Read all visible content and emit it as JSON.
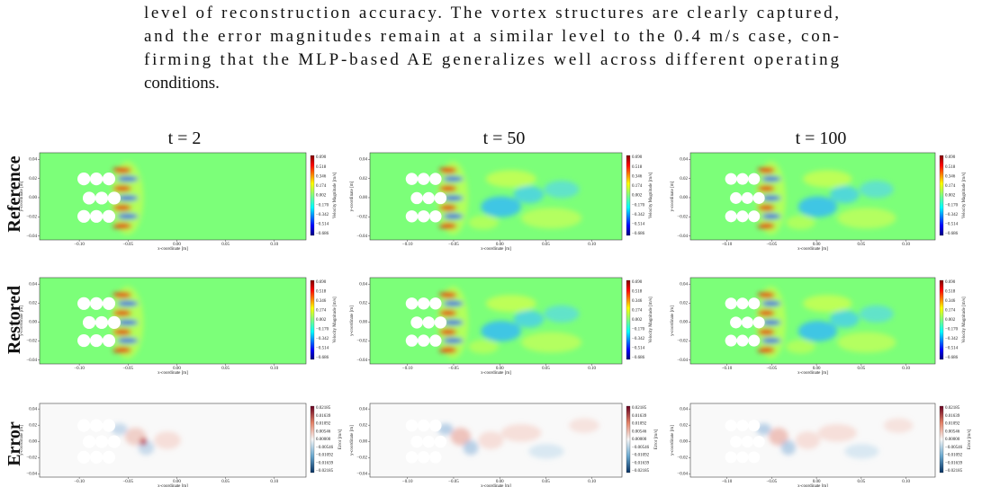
{
  "paragraph": [
    "level of reconstruction accuracy. The vortex structures are clearly captured,",
    "and the error magnitudes remain at a similar level to the 0.4 m/s case, con-",
    "firming that the MLP-based AE generalizes well across different operating",
    "conditions."
  ],
  "figure": {
    "columns": [
      "t = 2",
      "t = 50",
      "t = 100"
    ],
    "rows": [
      "Reference",
      "Restored",
      "Error"
    ],
    "x_axis_label": "x-coordinate [m]",
    "y_axis_label": "y-coordinate [m]",
    "xticks": [
      "−0.10",
      "−0.05",
      "0.00",
      "0.05",
      "0.10"
    ],
    "yticks": [
      "0.04",
      "0.02",
      "0.00",
      "−0.02",
      "−0.04"
    ],
    "velocity_colorbar": {
      "label": "Velocity Magnitude [m/s]",
      "ticks": [
        "0.690",
        "0.518",
        "0.346",
        "0.174",
        "0.002",
        "−0.170",
        "−0.342",
        "−0.514",
        "−0.686"
      ]
    },
    "error_colorbar": {
      "label": "Error [m/s]",
      "ticks": [
        "0.02185",
        "0.01639",
        "0.01092",
        "0.00546",
        "0.00000",
        "−0.00546",
        "−0.01092",
        "−0.01639",
        "−0.02185"
      ]
    }
  }
}
